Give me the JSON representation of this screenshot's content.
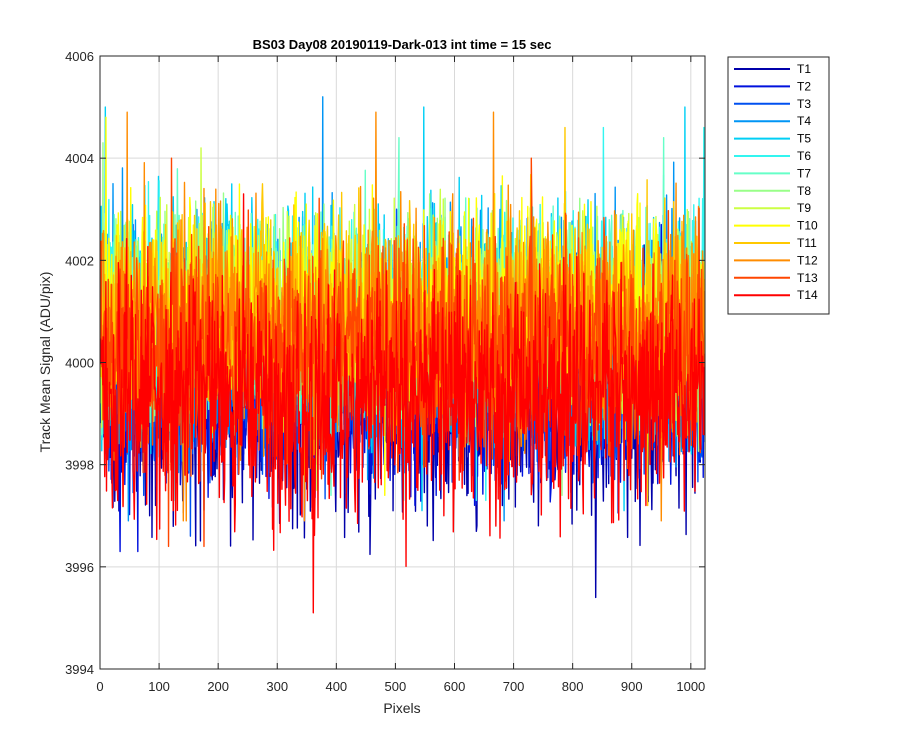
{
  "chart_data": {
    "type": "line",
    "title": "BS03 Day08 20190119-Dark-013 int time = 15 sec",
    "xlabel": "Pixels",
    "ylabel": "Track Mean Signal (ADU/pix)",
    "xlim": [
      0,
      1024
    ],
    "ylim": [
      3994,
      4006
    ],
    "xticks": [
      "0",
      "100",
      "200",
      "300",
      "400",
      "500",
      "600",
      "700",
      "800",
      "900",
      "1000"
    ],
    "yticks": [
      "3994",
      "3996",
      "3998",
      "4000",
      "4002",
      "4004",
      "4006"
    ],
    "grid": true,
    "legend_position": "outside-top-right",
    "x_points": 1024,
    "series": [
      {
        "name": "T1",
        "color": "#0000AA",
        "mean": 3999.1,
        "min": 3995.4,
        "max": 4002.3
      },
      {
        "name": "T2",
        "color": "#0011DD",
        "mean": 3999.4,
        "min": 3996.3,
        "max": 4002.7
      },
      {
        "name": "T3",
        "color": "#0050F0",
        "mean": 3999.7,
        "min": 3996.6,
        "max": 4003.0
      },
      {
        "name": "T4",
        "color": "#0095F5",
        "mean": 4000.1,
        "min": 3996.9,
        "max": 4005.2
      },
      {
        "name": "T5",
        "color": "#00CFF5",
        "mean": 4000.5,
        "min": 3997.1,
        "max": 4005.0
      },
      {
        "name": "T6",
        "color": "#33F5F0",
        "mean": 4000.7,
        "min": 3997.3,
        "max": 4004.6
      },
      {
        "name": "T7",
        "color": "#66FFC8",
        "mean": 4000.8,
        "min": 3997.4,
        "max": 4004.4
      },
      {
        "name": "T8",
        "color": "#99FF88",
        "mean": 4000.9,
        "min": 3997.4,
        "max": 4004.3
      },
      {
        "name": "T9",
        "color": "#CCFF44",
        "mean": 4001.0,
        "min": 3997.5,
        "max": 4004.2
      },
      {
        "name": "T10",
        "color": "#FFFF00",
        "mean": 4000.9,
        "min": 3997.4,
        "max": 4004.8
      },
      {
        "name": "T11",
        "color": "#FFC800",
        "mean": 4000.7,
        "min": 3997.2,
        "max": 4004.6
      },
      {
        "name": "T12",
        "color": "#FF8C00",
        "mean": 4000.5,
        "min": 3996.9,
        "max": 4004.9
      },
      {
        "name": "T13",
        "color": "#FF4600",
        "mean": 4000.2,
        "min": 3996.4,
        "max": 4004.0
      },
      {
        "name": "T14",
        "color": "#FF0000",
        "mean": 3999.4,
        "min": 3995.1,
        "max": 4003.3
      }
    ]
  }
}
